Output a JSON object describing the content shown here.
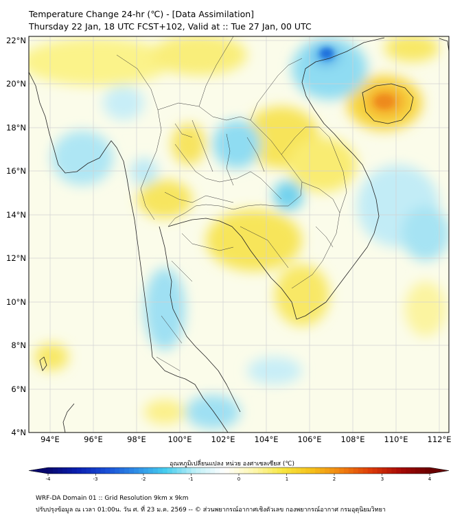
{
  "header": {
    "title_line1": "Temperature Change 24-hr (℃) - [Data Assimilation]",
    "title_line2": "Thursday 22 Jan, 18 UTC FCST+102, Valid at :: Tue 27 Jan, 00 UTC"
  },
  "map": {
    "lat_labels": [
      "22°N",
      "20°N",
      "18°N",
      "16°N",
      "14°N",
      "12°N",
      "10°N",
      "8°N",
      "6°N",
      "4°N"
    ],
    "lon_labels": [
      "94°E",
      "96°E",
      "98°E",
      "100°E",
      "102°E",
      "104°E",
      "106°E",
      "108°E",
      "110°E",
      "112°E"
    ]
  },
  "colorbar": {
    "title": "อุณหภูมิเปลี่ยนแปลง หน่วย องศาเซลเซียส (℃)",
    "ticks": [
      "-4",
      "-3",
      "-2",
      "-1",
      "0",
      "1",
      "2",
      "3",
      "4"
    ],
    "colors": [
      "#08086e",
      "#0a1fb0",
      "#1a4fd6",
      "#2f8ee6",
      "#46cdee",
      "#bdeff7",
      "#ffffff",
      "#fdf7b0",
      "#f7e640",
      "#f5c01a",
      "#f08010",
      "#dc3a08",
      "#a80a06",
      "#6a0000"
    ]
  },
  "footer": {
    "line1": "WRF-DA Domain 01 :: Grid Resolution 9km x 9km",
    "line2": "ปรับปรุงข้อมูล ณ เวลา 01:00น. วัน ศ. ที่ 23 ม.ค. 2569 -- © ส่วนพยากรณ์อากาศเชิงตัวเลข กองพยากรณ์อากาศ กรมอุตุนิยมวิทยา"
  }
}
